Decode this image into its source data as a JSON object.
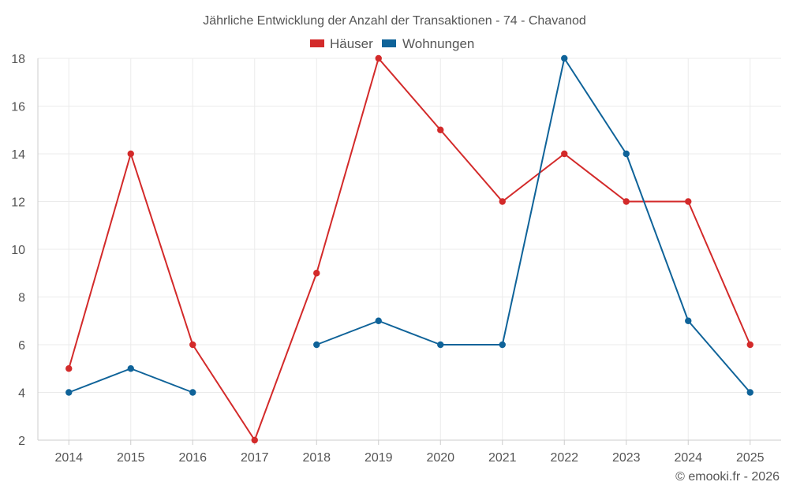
{
  "chart_data": {
    "type": "line",
    "title": "Jährliche Entwicklung der Anzahl der Transaktionen - 74 - Chavanod",
    "categories": [
      "2014",
      "2015",
      "2016",
      "2017",
      "2018",
      "2019",
      "2020",
      "2021",
      "2022",
      "2023",
      "2024",
      "2025"
    ],
    "series": [
      {
        "name": "Häuser",
        "color": "#d32a2a",
        "values": [
          5,
          14,
          6,
          2,
          9,
          18,
          15,
          12,
          14,
          12,
          12,
          6
        ]
      },
      {
        "name": "Wohnungen",
        "color": "#0f6399",
        "values": [
          4,
          5,
          4,
          null,
          6,
          7,
          6,
          6,
          18,
          14,
          7,
          4
        ]
      }
    ],
    "ylim": [
      2,
      18
    ],
    "yticks": [
      2,
      4,
      6,
      8,
      10,
      12,
      14,
      16,
      18
    ],
    "xlabel": "",
    "ylabel": "",
    "grid": true,
    "legend_position": "top-center"
  },
  "credit": "© emooki.fr - 2026"
}
